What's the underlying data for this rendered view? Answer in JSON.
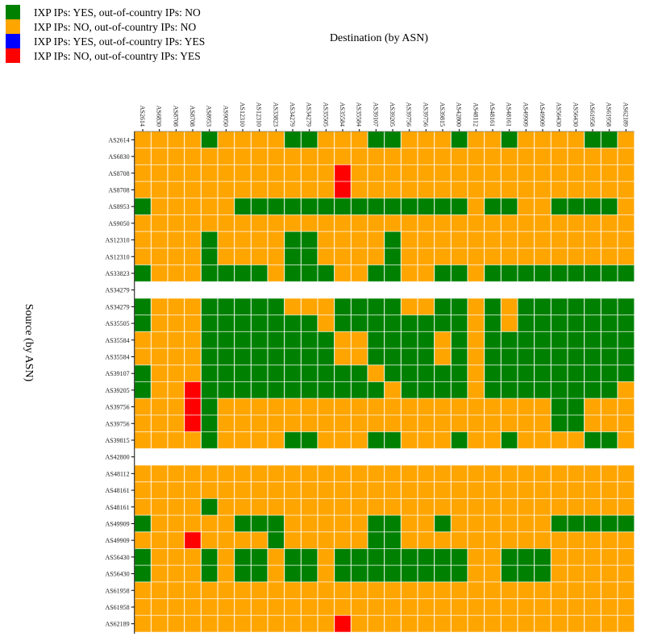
{
  "chart_data": {
    "type": "heatmap",
    "xlabel": "Destination (by ASN)",
    "ylabel": "Source (by ASN)",
    "legend_placement": "top-left",
    "grid": false,
    "categories": [
      {
        "label": "IXP IPs: YES, out-of-country IPs: NO",
        "color": "#008000"
      },
      {
        "label": "IXP IPs: NO, out-of-country IPs: NO",
        "color": "#FFA500"
      },
      {
        "label": "IXP IPs: YES, out-of-country IPs: YES",
        "color": "#0000FF"
      },
      {
        "label": "IXP IPs: NO, out-of-country IPs: YES",
        "color": "#FF0000"
      }
    ],
    "x_labels": [
      "AS2614",
      "AS6830",
      "AS8708",
      "AS8708",
      "AS8953",
      "AS9050",
      "AS12310",
      "AS12310",
      "AS33823",
      "AS34279",
      "AS34279",
      "AS35505",
      "AS35584",
      "AS35584",
      "AS39107",
      "AS39205",
      "AS39756",
      "AS39756",
      "AS39815",
      "AS42800",
      "AS48112",
      "AS48161",
      "AS48161",
      "AS49909",
      "AS49909",
      "AS56430",
      "AS56430",
      "AS61958",
      "AS61958",
      "AS62189"
    ],
    "y_labels": [
      "AS2614",
      "AS6830",
      "AS8708",
      "AS8708",
      "AS8953",
      "AS9050",
      "AS12310",
      "AS12310",
      "AS33823",
      "AS34279",
      "AS34279",
      "AS35505",
      "AS35584",
      "AS35584",
      "AS39107",
      "AS39205",
      "AS39756",
      "AS39756",
      "AS39815",
      "AS42800",
      "AS48112",
      "AS48161",
      "AS48161",
      "AS49909",
      "AS49909",
      "AS56430",
      "AS56430",
      "AS61958",
      "AS61958",
      "AS62189"
    ],
    "values_note_key": "each cell = index into categories; null row = no data",
    "values": [
      [
        1,
        1,
        1,
        1,
        0,
        1,
        1,
        1,
        1,
        0,
        0,
        1,
        1,
        1,
        0,
        0,
        1,
        1,
        1,
        0,
        1,
        1,
        0,
        1,
        1,
        1,
        1,
        0,
        0,
        1
      ],
      [
        1,
        1,
        1,
        1,
        1,
        1,
        1,
        1,
        1,
        1,
        1,
        1,
        1,
        1,
        1,
        1,
        1,
        1,
        1,
        1,
        1,
        1,
        1,
        1,
        1,
        1,
        1,
        1,
        1,
        1
      ],
      [
        1,
        1,
        1,
        1,
        1,
        1,
        1,
        1,
        1,
        1,
        1,
        1,
        3,
        1,
        1,
        1,
        1,
        1,
        1,
        1,
        1,
        1,
        1,
        1,
        1,
        1,
        1,
        1,
        1,
        1
      ],
      [
        1,
        1,
        1,
        1,
        1,
        1,
        1,
        1,
        1,
        1,
        1,
        1,
        3,
        1,
        1,
        1,
        1,
        1,
        1,
        1,
        1,
        1,
        1,
        1,
        1,
        1,
        1,
        1,
        1,
        1
      ],
      [
        0,
        1,
        1,
        1,
        1,
        1,
        0,
        0,
        0,
        0,
        0,
        0,
        0,
        0,
        0,
        0,
        0,
        0,
        0,
        0,
        1,
        0,
        0,
        1,
        1,
        0,
        0,
        0,
        0,
        1
      ],
      [
        1,
        1,
        1,
        1,
        1,
        1,
        1,
        1,
        1,
        1,
        1,
        1,
        1,
        1,
        1,
        1,
        1,
        1,
        1,
        1,
        1,
        1,
        1,
        1,
        1,
        1,
        1,
        1,
        1,
        1
      ],
      [
        1,
        1,
        1,
        1,
        0,
        1,
        1,
        1,
        1,
        0,
        0,
        1,
        1,
        1,
        1,
        0,
        1,
        1,
        1,
        1,
        1,
        1,
        1,
        1,
        1,
        1,
        1,
        1,
        1,
        1
      ],
      [
        1,
        1,
        1,
        1,
        0,
        1,
        1,
        1,
        1,
        0,
        0,
        1,
        1,
        1,
        1,
        0,
        1,
        1,
        1,
        1,
        1,
        1,
        1,
        1,
        1,
        1,
        1,
        1,
        1,
        1
      ],
      [
        0,
        1,
        1,
        1,
        0,
        0,
        0,
        0,
        1,
        0,
        0,
        0,
        1,
        1,
        0,
        0,
        1,
        1,
        0,
        0,
        1,
        0,
        0,
        0,
        0,
        0,
        0,
        0,
        0,
        0
      ],
      null,
      [
        0,
        1,
        1,
        1,
        0,
        0,
        0,
        0,
        0,
        1,
        1,
        1,
        0,
        0,
        0,
        0,
        1,
        1,
        0,
        0,
        1,
        0,
        1,
        0,
        0,
        0,
        0,
        0,
        0,
        0
      ],
      [
        0,
        1,
        1,
        1,
        0,
        0,
        0,
        0,
        0,
        0,
        0,
        1,
        0,
        0,
        0,
        0,
        0,
        0,
        0,
        0,
        1,
        0,
        1,
        0,
        0,
        0,
        0,
        0,
        0,
        0
      ],
      [
        1,
        1,
        1,
        1,
        0,
        0,
        0,
        0,
        0,
        0,
        0,
        0,
        1,
        1,
        0,
        0,
        0,
        0,
        1,
        0,
        1,
        0,
        0,
        0,
        0,
        0,
        0,
        0,
        0,
        0
      ],
      [
        1,
        1,
        1,
        1,
        0,
        0,
        0,
        0,
        0,
        0,
        0,
        0,
        1,
        1,
        0,
        0,
        0,
        0,
        1,
        0,
        1,
        0,
        0,
        0,
        0,
        0,
        0,
        0,
        0,
        0
      ],
      [
        0,
        1,
        1,
        1,
        0,
        0,
        0,
        0,
        0,
        0,
        0,
        0,
        0,
        0,
        1,
        0,
        0,
        0,
        0,
        0,
        1,
        0,
        0,
        0,
        0,
        0,
        0,
        0,
        0,
        0
      ],
      [
        0,
        1,
        1,
        3,
        0,
        0,
        0,
        0,
        0,
        0,
        0,
        0,
        0,
        0,
        0,
        1,
        0,
        0,
        0,
        0,
        1,
        0,
        0,
        0,
        0,
        0,
        0,
        0,
        0,
        1
      ],
      [
        1,
        1,
        1,
        3,
        0,
        1,
        1,
        1,
        1,
        1,
        1,
        1,
        1,
        1,
        1,
        1,
        1,
        1,
        1,
        1,
        1,
        1,
        1,
        1,
        1,
        0,
        0,
        1,
        1,
        1
      ],
      [
        1,
        1,
        1,
        3,
        0,
        1,
        1,
        1,
        1,
        1,
        1,
        1,
        1,
        1,
        1,
        1,
        1,
        1,
        1,
        1,
        1,
        1,
        1,
        1,
        1,
        0,
        0,
        1,
        1,
        1
      ],
      [
        1,
        1,
        1,
        1,
        0,
        1,
        1,
        1,
        1,
        0,
        0,
        1,
        1,
        1,
        0,
        0,
        1,
        1,
        1,
        0,
        1,
        1,
        0,
        1,
        1,
        1,
        1,
        0,
        0,
        1
      ],
      null,
      [
        1,
        1,
        1,
        1,
        1,
        1,
        1,
        1,
        1,
        1,
        1,
        1,
        1,
        1,
        1,
        1,
        1,
        1,
        1,
        1,
        1,
        1,
        1,
        1,
        1,
        1,
        1,
        1,
        1,
        1
      ],
      [
        1,
        1,
        1,
        1,
        1,
        1,
        1,
        1,
        1,
        1,
        1,
        1,
        1,
        1,
        1,
        1,
        1,
        1,
        1,
        1,
        1,
        1,
        1,
        1,
        1,
        1,
        1,
        1,
        1,
        1
      ],
      [
        1,
        1,
        1,
        1,
        0,
        1,
        1,
        1,
        1,
        1,
        1,
        1,
        1,
        1,
        1,
        1,
        1,
        1,
        1,
        1,
        1,
        1,
        1,
        1,
        1,
        1,
        1,
        1,
        1,
        1
      ],
      [
        0,
        1,
        1,
        1,
        1,
        1,
        0,
        0,
        0,
        1,
        1,
        1,
        1,
        1,
        0,
        0,
        1,
        1,
        0,
        1,
        1,
        1,
        1,
        1,
        1,
        0,
        0,
        0,
        0,
        0
      ],
      [
        1,
        1,
        1,
        3,
        1,
        1,
        1,
        1,
        0,
        1,
        1,
        1,
        1,
        1,
        0,
        0,
        1,
        1,
        1,
        1,
        1,
        1,
        1,
        1,
        1,
        1,
        1,
        1,
        1,
        1
      ],
      [
        0,
        1,
        1,
        1,
        0,
        1,
        0,
        0,
        1,
        0,
        0,
        1,
        0,
        0,
        0,
        0,
        0,
        0,
        0,
        0,
        1,
        1,
        0,
        0,
        0,
        1,
        1,
        1,
        1,
        1
      ],
      [
        0,
        1,
        1,
        1,
        0,
        1,
        0,
        0,
        1,
        0,
        0,
        1,
        0,
        0,
        0,
        0,
        0,
        0,
        0,
        0,
        1,
        1,
        0,
        0,
        0,
        1,
        1,
        1,
        1,
        1
      ],
      [
        1,
        1,
        1,
        1,
        1,
        1,
        1,
        1,
        1,
        1,
        1,
        1,
        1,
        1,
        1,
        1,
        1,
        1,
        1,
        1,
        1,
        1,
        1,
        1,
        1,
        1,
        1,
        1,
        1,
        1
      ],
      [
        1,
        1,
        1,
        1,
        1,
        1,
        1,
        1,
        1,
        1,
        1,
        1,
        1,
        1,
        1,
        1,
        1,
        1,
        1,
        1,
        1,
        1,
        1,
        1,
        1,
        1,
        1,
        1,
        1,
        1
      ],
      [
        1,
        1,
        1,
        1,
        1,
        1,
        1,
        1,
        1,
        1,
        1,
        1,
        3,
        1,
        1,
        1,
        1,
        1,
        1,
        1,
        1,
        1,
        1,
        1,
        1,
        1,
        1,
        1,
        1,
        1
      ]
    ]
  }
}
